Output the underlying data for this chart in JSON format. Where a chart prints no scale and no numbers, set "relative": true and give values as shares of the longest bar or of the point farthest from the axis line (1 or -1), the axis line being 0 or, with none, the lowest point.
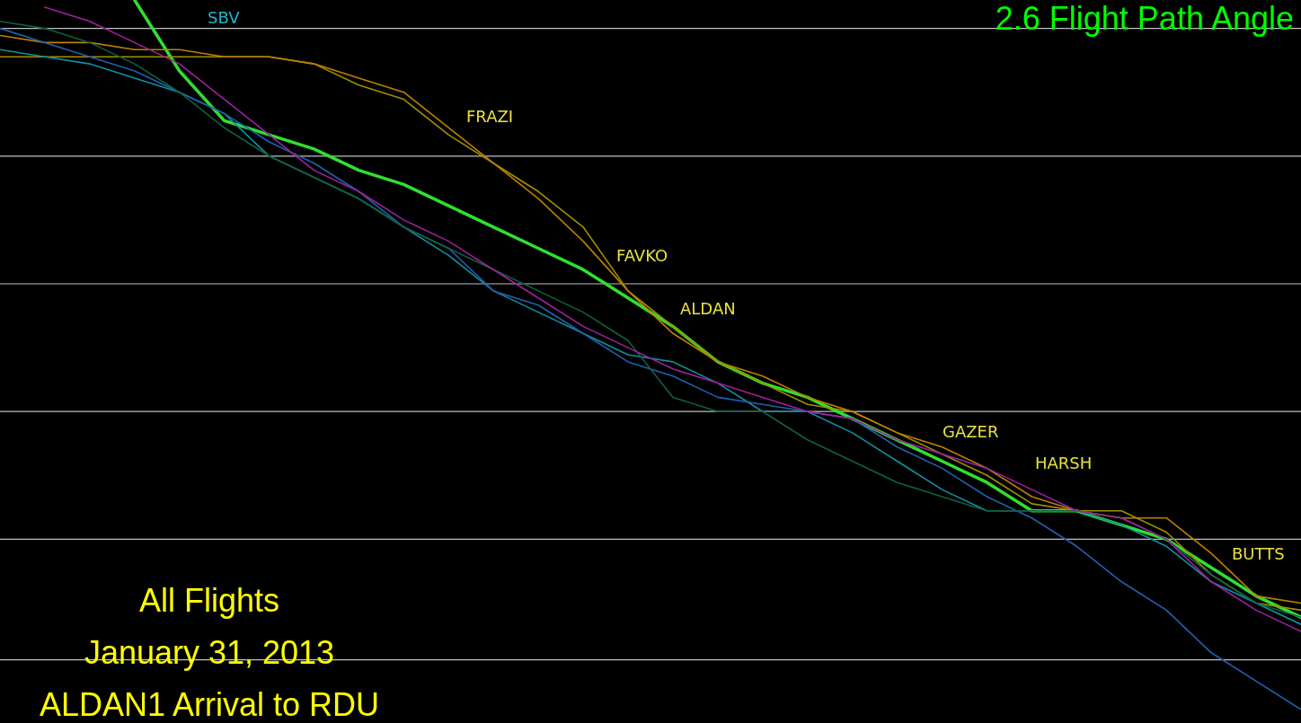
{
  "chart_data": {
    "type": "line",
    "title": "2.6 Flight Path Angle",
    "relative": true,
    "legend": false,
    "marker": "none",
    "line_style": "solid",
    "categories": [
      null,
      null,
      null,
      null,
      null,
      null,
      null,
      null,
      null,
      null,
      null,
      null,
      null,
      null,
      null,
      null,
      null,
      null,
      null,
      null,
      null,
      null,
      null,
      null,
      null,
      null,
      null,
      null,
      null,
      null
    ],
    "series": [
      {
        "color": "#a020a0",
        "values": [
          null,
          0.99,
          0.97,
          0.94,
          0.91,
          0.86,
          0.81,
          0.76,
          0.73,
          0.69,
          0.66,
          0.62,
          0.58,
          0.54,
          0.51,
          0.48,
          0.46,
          0.44,
          0.42,
          0.41,
          0.38,
          0.36,
          0.34,
          0.31,
          0.28,
          0.27,
          0.24,
          0.18,
          0.14,
          0.11
        ]
      },
      {
        "color": "#106040",
        "values": [
          0.97,
          0.96,
          0.94,
          0.91,
          0.87,
          0.82,
          0.78,
          0.75,
          0.72,
          0.68,
          0.65,
          0.62,
          0.59,
          0.56,
          0.52,
          0.44,
          0.42,
          0.42,
          0.38,
          0.35,
          0.32,
          0.3,
          0.28,
          0.28,
          0.28,
          0.27,
          0.24,
          0.19,
          0.15,
          0.13
        ]
      },
      {
        "color": "#2060b0",
        "values": [
          0.96,
          0.94,
          0.92,
          0.9,
          0.87,
          0.84,
          0.8,
          0.77,
          0.73,
          0.68,
          0.65,
          0.59,
          0.57,
          0.53,
          0.49,
          0.47,
          0.44,
          0.43,
          0.42,
          0.41,
          0.37,
          0.34,
          0.3,
          0.27,
          0.23,
          0.18,
          0.14,
          0.08,
          0.04,
          0.0
        ]
      },
      {
        "color": "#1090a0",
        "values": [
          0.93,
          0.92,
          0.91,
          0.89,
          0.87,
          0.84,
          0.78,
          0.75,
          0.72,
          0.68,
          0.64,
          0.59,
          0.56,
          0.53,
          0.5,
          0.49,
          0.46,
          0.42,
          0.42,
          0.39,
          0.35,
          0.31,
          0.28,
          0.28,
          0.28,
          0.26,
          0.23,
          0.18,
          0.15,
          0.12
        ]
      },
      {
        "color": "#c08000",
        "values": [
          0.95,
          0.94,
          0.94,
          0.93,
          0.93,
          0.92,
          0.92,
          0.91,
          0.89,
          0.87,
          0.82,
          0.77,
          0.72,
          0.66,
          0.59,
          0.53,
          0.49,
          0.47,
          0.44,
          0.42,
          0.39,
          0.37,
          0.34,
          0.3,
          0.28,
          0.27,
          0.27,
          0.22,
          0.16,
          0.15
        ]
      },
      {
        "color": "#a09000",
        "values": [
          0.92,
          0.92,
          0.92,
          0.92,
          0.92,
          0.92,
          0.92,
          0.91,
          0.88,
          0.86,
          0.81,
          0.77,
          0.73,
          0.68,
          0.59,
          0.54,
          0.49,
          0.46,
          0.43,
          0.42,
          0.39,
          0.36,
          0.33,
          0.29,
          0.28,
          0.28,
          0.25,
          0.19,
          0.15,
          0.14
        ]
      },
      {
        "color": "#30e030",
        "values": [
          null,
          null,
          null,
          1.0,
          0.9,
          0.83,
          0.81,
          0.79,
          0.76,
          0.74,
          0.71,
          0.68,
          0.65,
          0.62,
          0.58,
          0.54,
          0.49,
          0.46,
          0.44,
          0.41,
          0.38,
          0.35,
          0.32,
          0.28,
          0.28,
          0.26,
          0.24,
          0.2,
          0.16,
          0.13
        ]
      }
    ],
    "ref_lines": [
      {
        "axis": "y",
        "value": 0.96,
        "color": "#c0c0c0"
      },
      {
        "axis": "y",
        "value": 0.78,
        "color": "#c0c0c0"
      },
      {
        "axis": "y",
        "value": 0.6,
        "color": "#c0c0c0"
      },
      {
        "axis": "y",
        "value": 0.42,
        "color": "#c0c0c0"
      },
      {
        "axis": "y",
        "value": 0.24,
        "color": "#c0c0c0"
      },
      {
        "axis": "y",
        "value": 0.07,
        "color": "#c0c0c0"
      }
    ],
    "annotations": [
      "SBV",
      "FRAZI",
      "FAVKO",
      "ALDAN",
      "GAZER",
      "HARSH",
      "BUTTS",
      "All Flights",
      "January 31, 2013",
      "ALDAN1 Arrival to RDU"
    ]
  }
}
